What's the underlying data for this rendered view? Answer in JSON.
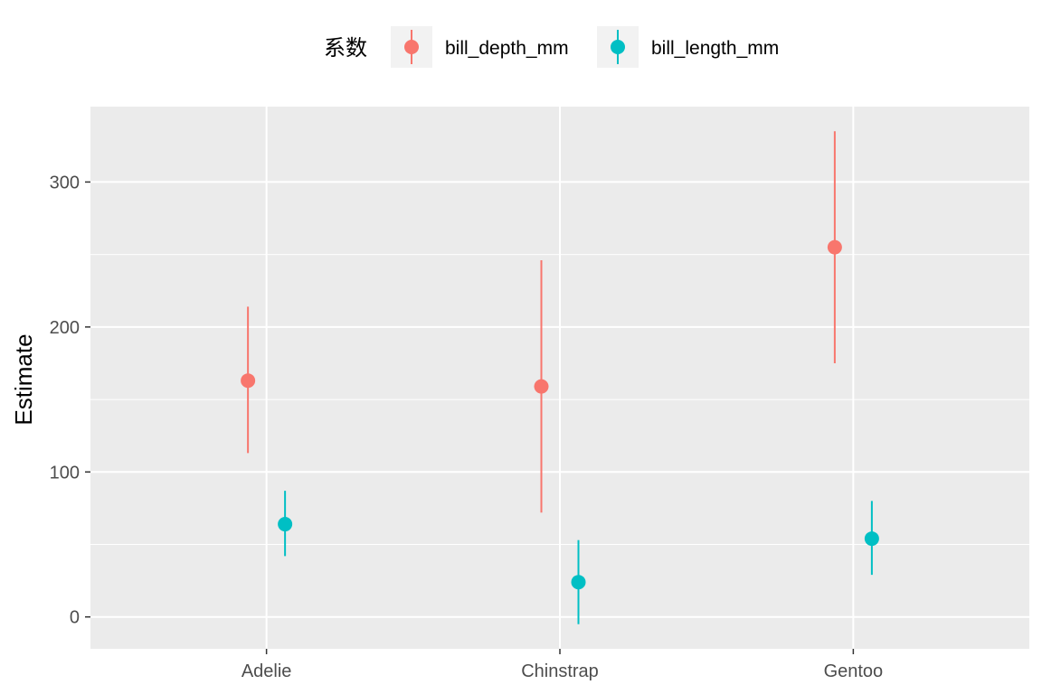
{
  "chart_data": {
    "type": "scatter",
    "subtype": "pointrange",
    "title": "",
    "xlabel": "",
    "ylabel": "Estimate",
    "categories": [
      "Adelie",
      "Chinstrap",
      "Gentoo"
    ],
    "ylim": [
      -22,
      352
    ],
    "yticks": [
      0,
      100,
      200,
      300
    ],
    "grid": true,
    "legend": {
      "title": "系数",
      "position": "top"
    },
    "series": [
      {
        "name": "bill_depth_mm",
        "color": "#F8766D",
        "points": [
          {
            "category": "Adelie",
            "estimate": 163,
            "lower": 113,
            "upper": 214
          },
          {
            "category": "Chinstrap",
            "estimate": 159,
            "lower": 72,
            "upper": 246
          },
          {
            "category": "Gentoo",
            "estimate": 255,
            "lower": 175,
            "upper": 335
          }
        ]
      },
      {
        "name": "bill_length_mm",
        "color": "#00BFC4",
        "points": [
          {
            "category": "Adelie",
            "estimate": 64,
            "lower": 42,
            "upper": 87
          },
          {
            "category": "Chinstrap",
            "estimate": 24,
            "lower": -5,
            "upper": 53
          },
          {
            "category": "Gentoo",
            "estimate": 54,
            "lower": 29,
            "upper": 80
          }
        ]
      }
    ]
  },
  "colors": {
    "panel_background": "#EBEBEB",
    "grid": "#FFFFFF",
    "legend_key_background": "#F2F2F2"
  }
}
